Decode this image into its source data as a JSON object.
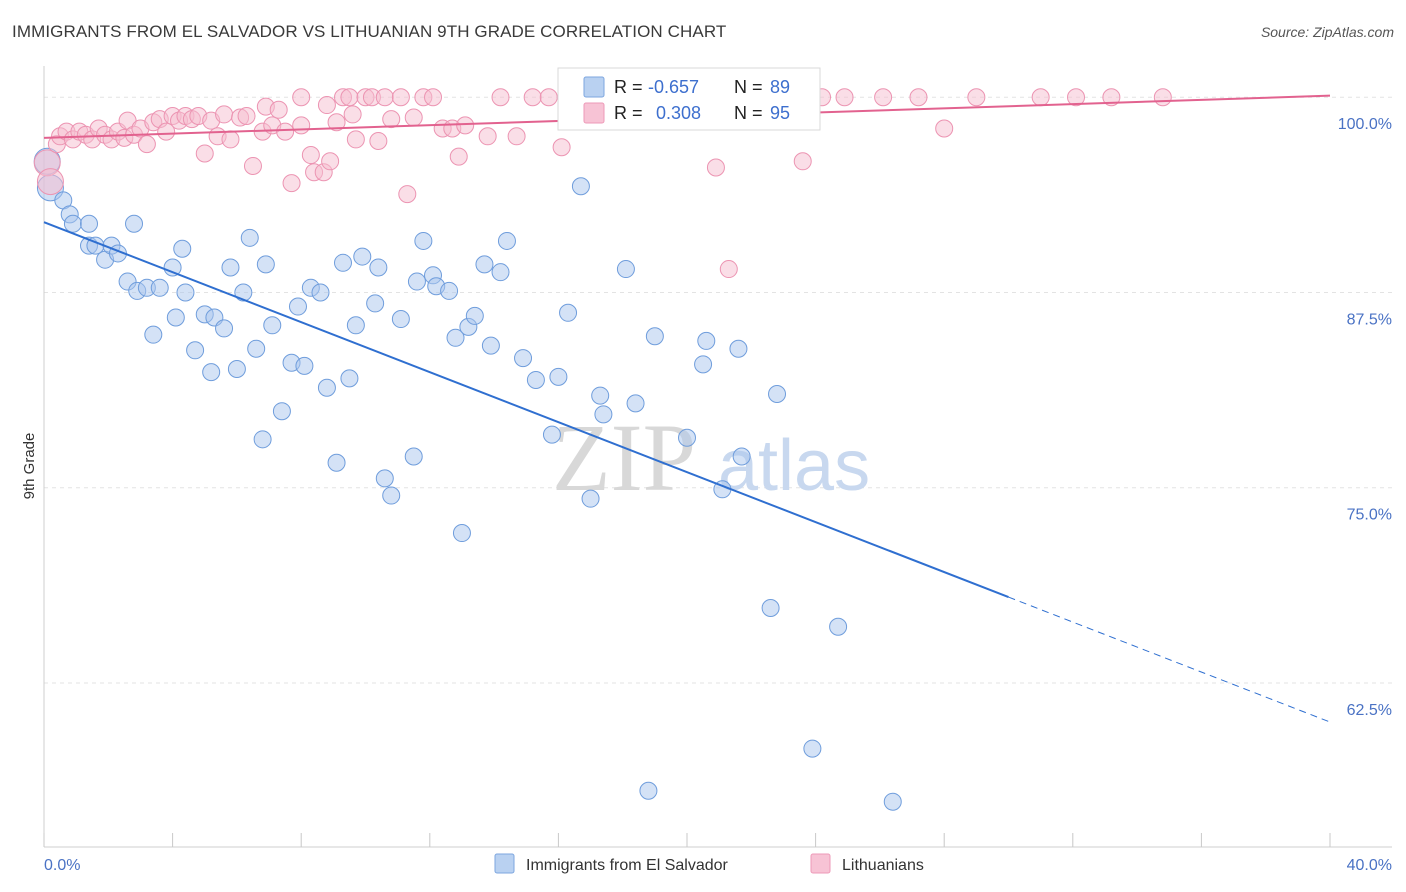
{
  "header": {
    "title": "IMMIGRANTS FROM EL SALVADOR VS LITHUANIAN 9TH GRADE CORRELATION CHART",
    "source": "Source: ZipAtlas.com"
  },
  "watermark": {
    "zip": "ZIP",
    "atlas": "atlas"
  },
  "chart_data": {
    "type": "scatter",
    "title": "IMMIGRANTS FROM EL SALVADOR VS LITHUANIAN 9TH GRADE CORRELATION CHART",
    "xlabel": "",
    "ylabel": "9th Grade",
    "xlim": [
      0,
      40
    ],
    "ylim": [
      52,
      102
    ],
    "x_tick_labels": [
      "0.0%",
      "40.0%"
    ],
    "y_ticks": [
      {
        "value": 100,
        "label": "100.0%"
      },
      {
        "value": 87.5,
        "label": "87.5%"
      },
      {
        "value": 75,
        "label": "75.0%"
      },
      {
        "value": 62.5,
        "label": "62.5%"
      }
    ],
    "legend": {
      "stats": [
        {
          "r_label": "R =",
          "r_value": "-0.657",
          "n_label": "N =",
          "n_value": "89"
        },
        {
          "r_label": "R =",
          "r_value": "0.308",
          "n_label": "N =",
          "n_value": "95"
        }
      ],
      "bottom": [
        "Immigrants from El Salvador",
        "Lithuanians"
      ]
    },
    "series": [
      {
        "name": "Immigrants from El Salvador",
        "color": "#a9c6ee",
        "stroke": "#6f9ddc",
        "line_color": "#2f6fd0",
        "trend": {
          "x_start": 0.0,
          "y_start": 92.0,
          "x_solid_end": 30.0,
          "y_solid_end": 68.0,
          "x_end": 40.0,
          "y_end": 60.0
        },
        "points": [
          [
            0.1,
            95.9
          ],
          [
            0.2,
            94.2
          ],
          [
            0.6,
            93.4
          ],
          [
            0.8,
            92.5
          ],
          [
            0.9,
            91.9
          ],
          [
            1.4,
            91.9
          ],
          [
            1.4,
            90.5
          ],
          [
            1.6,
            90.5
          ],
          [
            1.9,
            89.6
          ],
          [
            2.1,
            90.5
          ],
          [
            2.3,
            90.0
          ],
          [
            2.6,
            88.2
          ],
          [
            2.8,
            91.9
          ],
          [
            2.9,
            87.6
          ],
          [
            3.2,
            87.8
          ],
          [
            3.4,
            84.8
          ],
          [
            3.6,
            87.8
          ],
          [
            4.0,
            89.1
          ],
          [
            4.1,
            85.9
          ],
          [
            4.3,
            90.3
          ],
          [
            4.4,
            87.5
          ],
          [
            4.7,
            83.8
          ],
          [
            5.0,
            86.1
          ],
          [
            5.2,
            82.4
          ],
          [
            5.3,
            85.9
          ],
          [
            5.6,
            85.2
          ],
          [
            5.8,
            89.1
          ],
          [
            6.0,
            82.6
          ],
          [
            6.2,
            87.5
          ],
          [
            6.4,
            91.0
          ],
          [
            6.6,
            83.9
          ],
          [
            6.8,
            78.1
          ],
          [
            6.9,
            89.3
          ],
          [
            7.1,
            85.4
          ],
          [
            7.4,
            79.9
          ],
          [
            7.7,
            83.0
          ],
          [
            7.9,
            86.6
          ],
          [
            8.1,
            82.8
          ],
          [
            8.3,
            87.8
          ],
          [
            8.6,
            87.5
          ],
          [
            8.8,
            81.4
          ],
          [
            9.1,
            76.6
          ],
          [
            9.3,
            89.4
          ],
          [
            9.5,
            82.0
          ],
          [
            9.7,
            85.4
          ],
          [
            9.9,
            89.8
          ],
          [
            10.3,
            86.8
          ],
          [
            10.4,
            89.1
          ],
          [
            10.6,
            75.6
          ],
          [
            10.8,
            74.5
          ],
          [
            11.1,
            85.8
          ],
          [
            11.5,
            77.0
          ],
          [
            11.6,
            88.2
          ],
          [
            11.8,
            90.8
          ],
          [
            12.1,
            88.6
          ],
          [
            12.2,
            87.9
          ],
          [
            12.6,
            87.6
          ],
          [
            12.8,
            84.6
          ],
          [
            13.0,
            72.1
          ],
          [
            13.2,
            85.3
          ],
          [
            13.4,
            86.0
          ],
          [
            13.7,
            89.3
          ],
          [
            13.9,
            84.1
          ],
          [
            14.2,
            88.8
          ],
          [
            14.4,
            90.8
          ],
          [
            14.9,
            83.3
          ],
          [
            15.3,
            81.9
          ],
          [
            15.8,
            78.4
          ],
          [
            16.0,
            82.1
          ],
          [
            16.3,
            86.2
          ],
          [
            16.7,
            94.3
          ],
          [
            17.0,
            74.3
          ],
          [
            17.3,
            80.9
          ],
          [
            17.4,
            79.7
          ],
          [
            18.1,
            89.0
          ],
          [
            18.4,
            80.4
          ],
          [
            18.8,
            55.6
          ],
          [
            19.0,
            84.7
          ],
          [
            20.0,
            78.2
          ],
          [
            20.5,
            82.9
          ],
          [
            20.6,
            84.4
          ],
          [
            21.1,
            74.9
          ],
          [
            21.6,
            83.9
          ],
          [
            21.7,
            77.0
          ],
          [
            22.6,
            67.3
          ],
          [
            22.8,
            81.0
          ],
          [
            23.9,
            58.3
          ],
          [
            24.7,
            66.1
          ],
          [
            26.4,
            54.9
          ]
        ]
      },
      {
        "name": "Lithuanians",
        "color": "#f6bdd0",
        "stroke": "#ec94b2",
        "line_color": "#e2628f",
        "trend": {
          "x_start": 0.0,
          "y_start": 97.4,
          "x_end": 40.0,
          "y_end": 100.1
        },
        "points": [
          [
            0.1,
            95.8
          ],
          [
            0.2,
            94.6
          ],
          [
            0.4,
            97.0
          ],
          [
            0.5,
            97.5
          ],
          [
            0.7,
            97.8
          ],
          [
            0.9,
            97.3
          ],
          [
            1.1,
            97.8
          ],
          [
            1.3,
            97.6
          ],
          [
            1.5,
            97.3
          ],
          [
            1.7,
            98.0
          ],
          [
            1.9,
            97.6
          ],
          [
            2.1,
            97.3
          ],
          [
            2.3,
            97.8
          ],
          [
            2.5,
            97.4
          ],
          [
            2.6,
            98.5
          ],
          [
            2.8,
            97.6
          ],
          [
            3.0,
            98.0
          ],
          [
            3.2,
            97.0
          ],
          [
            3.4,
            98.4
          ],
          [
            3.6,
            98.6
          ],
          [
            3.8,
            97.8
          ],
          [
            4.0,
            98.8
          ],
          [
            4.2,
            98.5
          ],
          [
            4.4,
            98.8
          ],
          [
            4.6,
            98.6
          ],
          [
            4.8,
            98.8
          ],
          [
            5.0,
            96.4
          ],
          [
            5.2,
            98.5
          ],
          [
            5.4,
            97.5
          ],
          [
            5.6,
            98.9
          ],
          [
            5.8,
            97.3
          ],
          [
            6.1,
            98.7
          ],
          [
            6.3,
            98.8
          ],
          [
            6.5,
            95.6
          ],
          [
            6.8,
            97.8
          ],
          [
            6.9,
            99.4
          ],
          [
            7.1,
            98.2
          ],
          [
            7.3,
            99.2
          ],
          [
            7.5,
            97.8
          ],
          [
            7.7,
            94.5
          ],
          [
            8.0,
            98.2
          ],
          [
            8.0,
            100.0
          ],
          [
            8.3,
            96.3
          ],
          [
            8.4,
            95.2
          ],
          [
            8.7,
            95.2
          ],
          [
            8.8,
            99.5
          ],
          [
            8.9,
            95.9
          ],
          [
            9.1,
            98.4
          ],
          [
            9.3,
            100.0
          ],
          [
            9.5,
            100.0
          ],
          [
            9.6,
            98.9
          ],
          [
            9.7,
            97.3
          ],
          [
            10.0,
            100.0
          ],
          [
            10.2,
            100.0
          ],
          [
            10.4,
            97.2
          ],
          [
            10.6,
            100.0
          ],
          [
            10.8,
            98.6
          ],
          [
            11.1,
            100.0
          ],
          [
            11.3,
            93.8
          ],
          [
            11.5,
            98.7
          ],
          [
            11.8,
            100.0
          ],
          [
            12.1,
            100.0
          ],
          [
            12.4,
            98.0
          ],
          [
            12.7,
            98.0
          ],
          [
            12.9,
            96.2
          ],
          [
            13.1,
            98.2
          ],
          [
            13.8,
            97.5
          ],
          [
            14.2,
            100.0
          ],
          [
            14.7,
            97.5
          ],
          [
            15.2,
            100.0
          ],
          [
            15.7,
            100.0
          ],
          [
            16.1,
            96.8
          ],
          [
            16.5,
            100.0
          ],
          [
            16.9,
            100.0
          ],
          [
            17.5,
            100.0
          ],
          [
            18.0,
            100.0
          ],
          [
            18.8,
            100.0
          ],
          [
            19.5,
            100.0
          ],
          [
            20.2,
            100.0
          ],
          [
            20.9,
            95.5
          ],
          [
            21.3,
            89.0
          ],
          [
            21.8,
            100.0
          ],
          [
            22.6,
            100.0
          ],
          [
            23.4,
            100.0
          ],
          [
            23.6,
            95.9
          ],
          [
            24.2,
            100.0
          ],
          [
            24.9,
            100.0
          ],
          [
            26.1,
            100.0
          ],
          [
            27.2,
            100.0
          ],
          [
            28.0,
            98.0
          ],
          [
            29.0,
            100.0
          ],
          [
            31.0,
            100.0
          ],
          [
            32.1,
            100.0
          ],
          [
            33.2,
            100.0
          ],
          [
            34.8,
            100.0
          ]
        ]
      }
    ]
  }
}
